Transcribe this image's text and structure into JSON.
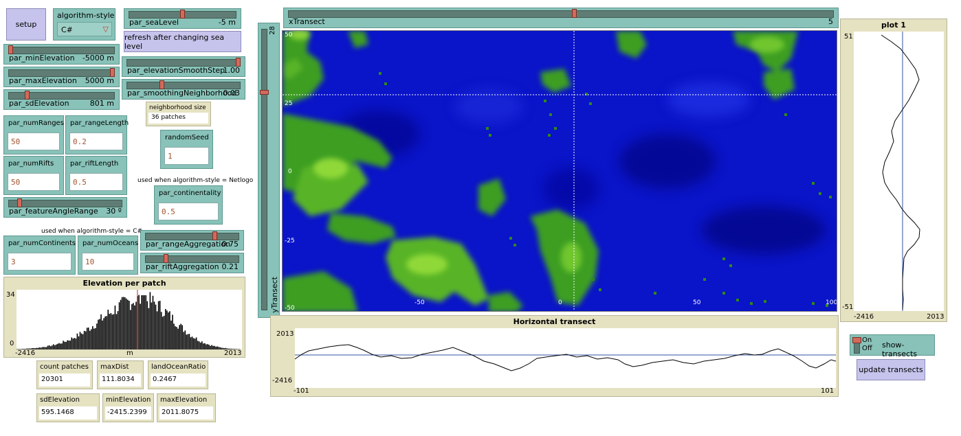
{
  "setup_button": {
    "label": "setup"
  },
  "algorithm_style": {
    "label": "algorithm-style",
    "value": "C#"
  },
  "sliders": {
    "seaLevel": {
      "label": "par_seaLevel",
      "value": "-5 m",
      "fraction": 0.5
    },
    "minElevation": {
      "label": "par_minElevation",
      "value": "-5000 m",
      "fraction": 0.0
    },
    "maxElevation": {
      "label": "par_maxElevation",
      "value": "5000 m",
      "fraction": 1.0
    },
    "sdElevation": {
      "label": "par_sdElevation",
      "value": "801 m",
      "fraction": 0.16
    },
    "elevationSmoothStep": {
      "label": "par_elevationSmoothStep",
      "value": "1.00",
      "fraction": 1.0
    },
    "smoothingNeighborhood": {
      "label": "par_smoothingNeighborhood",
      "value": "0.03",
      "fraction": 0.3
    },
    "featureAngleRange": {
      "label": "par_featureAngleRange",
      "value": "30 º",
      "fraction": 0.08
    },
    "rangeAggregation": {
      "label": "par_rangeAggregation",
      "value": "0.75",
      "fraction": 0.75
    },
    "riftAggregation": {
      "label": "par_riftAggregation",
      "value": "0.21",
      "fraction": 0.21
    },
    "xTranscript": {
      "label": "xTransect",
      "value": "5",
      "fraction": 0.525
    },
    "yTranscript": {
      "label": "yTransect",
      "value": "28",
      "fraction": 0.78
    }
  },
  "refresh_button": {
    "label": "refresh after changing sea level"
  },
  "neighborhood_size": {
    "label": "neighborhood size",
    "value": "36 patches"
  },
  "inputs": {
    "numRanges": {
      "label": "par_numRanges",
      "value": "50"
    },
    "rangeLength": {
      "label": "par_rangeLength",
      "value": "0.2"
    },
    "numRifts": {
      "label": "par_numRifts",
      "value": "50"
    },
    "riftLength": {
      "label": "par_riftLength",
      "value": "0.5"
    },
    "randomSeed": {
      "label": "randomSeed",
      "value": "1"
    },
    "continentality": {
      "label": "par_continentality",
      "value": "0.5"
    },
    "numContinents": {
      "label": "par_numContinents",
      "value": "3"
    },
    "numOceans": {
      "label": "par_numOceans",
      "value": "10"
    }
  },
  "notes": {
    "netlogo": "used when algorithm-style = Netlogo",
    "csharp": "used when algorithm-style = C#"
  },
  "histogram": {
    "title": "Elevation per patch",
    "ymax": "34",
    "ymin": "0",
    "xmin": "-2416",
    "xmax": "2013",
    "xlabel": "m"
  },
  "monitors": {
    "countPatches": {
      "label": "count patches",
      "value": "20301"
    },
    "maxDist": {
      "label": "maxDist",
      "value": "111.8034"
    },
    "landOceanRatio": {
      "label": "landOceanRatio",
      "value": "0.2467"
    },
    "sdElevation": {
      "label": "sdElevation",
      "value": "595.1468"
    },
    "minElevation": {
      "label": "minElevation",
      "value": "-2415.2399"
    },
    "maxElevation": {
      "label": "maxElevation",
      "value": "2011.8075"
    }
  },
  "world_axis": {
    "y_top": "50",
    "y_25": "25",
    "y_0": "0",
    "y_m25": "-25",
    "y_bottom": "-50",
    "x_m50": "-50",
    "x_0": "0",
    "x_50": "50",
    "x_right": "100"
  },
  "horizontal_transect": {
    "title": "Horizontal transect",
    "ymax": "2013",
    "ymin": "-2416",
    "xmin": "-101",
    "xmax": "101"
  },
  "plot1": {
    "title": "plot 1",
    "ymax": "51",
    "ymin": "-51",
    "xmin": "-2416",
    "xmax": "2013"
  },
  "show_transects": {
    "label": "show-transects",
    "on": "On",
    "off": "Off"
  },
  "update_transects": {
    "label": "update transects"
  },
  "colors": {
    "ocean": "#0000c8",
    "land": "#3c9e1e",
    "widget_teal": "#88c2b8",
    "widget_tan": "#e5e2c2",
    "button": "#c6c4ec"
  }
}
